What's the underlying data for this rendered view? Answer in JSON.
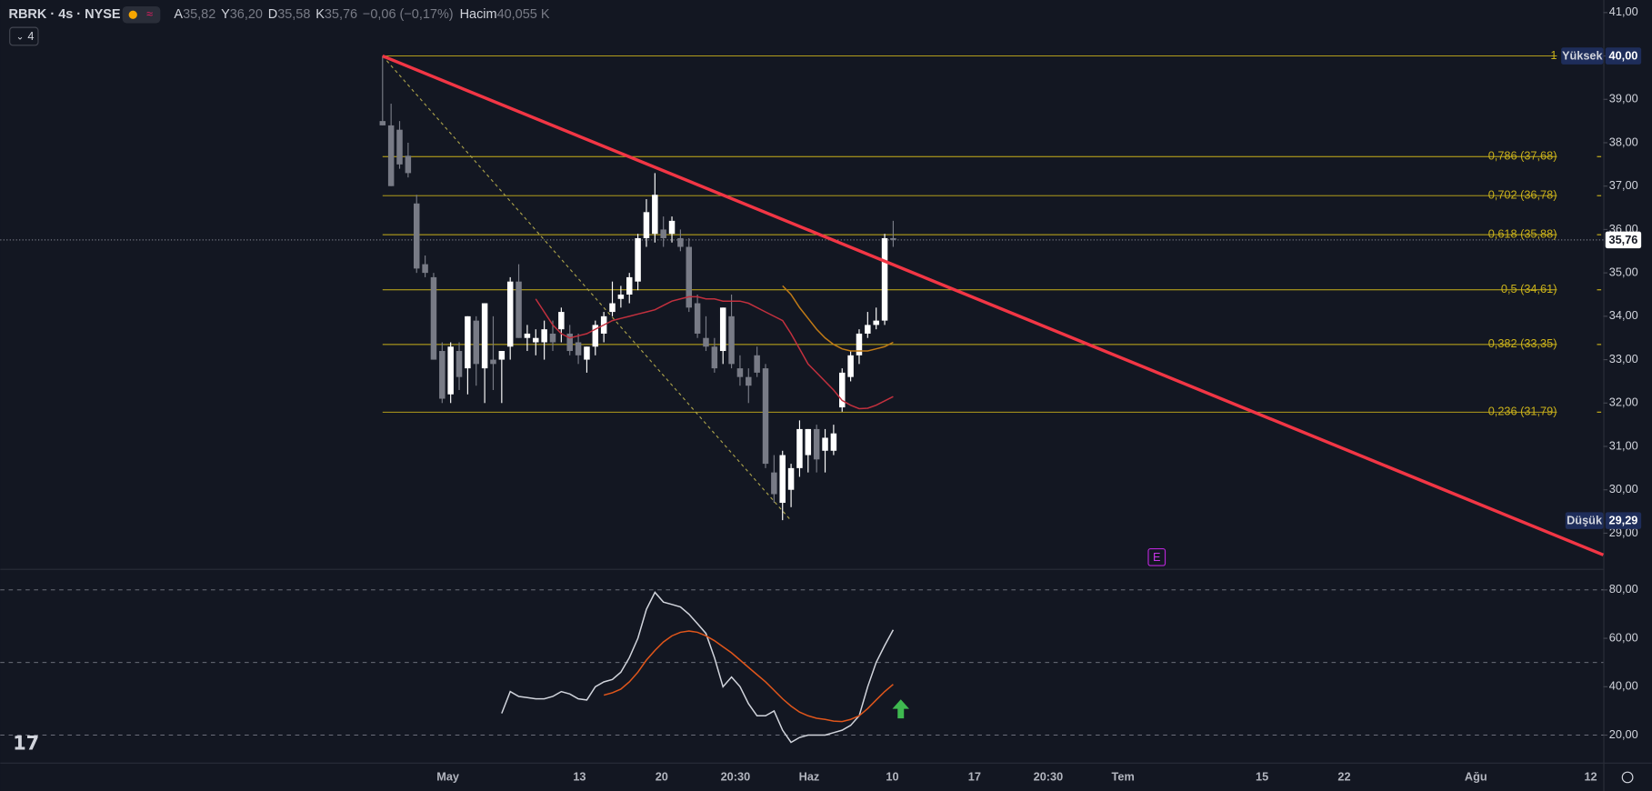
{
  "header": {
    "symbol": "RBRK · 4s · NYSE",
    "o_label": "A",
    "o": "35,82",
    "h_label": "Y",
    "h": "36,20",
    "l_label": "D",
    "l": "35,58",
    "c_label": "K",
    "c": "35,76",
    "change": "−0,06 (−0,17%)",
    "vol_label": "Hacim",
    "vol": "40,055 K",
    "collapse": "4",
    "earnings": "E"
  },
  "chart_data": [
    {
      "type": "candlestick",
      "ylim": [
        28.18,
        41.29
      ],
      "yticks": [
        {
          "value": 29,
          "label": "29,00"
        },
        {
          "value": 30,
          "label": "30,00"
        },
        {
          "value": 31,
          "label": "31,00"
        },
        {
          "value": 32,
          "label": "32,00"
        },
        {
          "value": 33,
          "label": "33,00"
        },
        {
          "value": 34,
          "label": "34,00"
        },
        {
          "value": 35,
          "label": "35,00"
        },
        {
          "value": 36,
          "label": "36,00"
        },
        {
          "value": 37,
          "label": "37,00"
        },
        {
          "value": 38,
          "label": "38,00"
        },
        {
          "value": 39,
          "label": "39,00"
        },
        {
          "value": 40,
          "label": "40,00"
        },
        {
          "value": 41,
          "label": "41,00"
        }
      ],
      "x_labels": [
        "May",
        "13",
        "20",
        "20:30",
        "Haz",
        "10",
        "17",
        "20:30",
        "Tem",
        "15",
        "22",
        "Ağu",
        "12"
      ],
      "up_color": "#ffffff",
      "down_color": "#787b86",
      "open": [
        38.5,
        38.4,
        38.3,
        37.7,
        36.6,
        35.2,
        34.9,
        33.2,
        32.2,
        33.2,
        32.8,
        33.9,
        32.8,
        33.0,
        33.0,
        33.3,
        34.8,
        33.5,
        33.4,
        33.4,
        33.6,
        33.7,
        33.6,
        33.4,
        33.0,
        33.3,
        33.6,
        34.1,
        34.4,
        34.5,
        34.8,
        35.8,
        35.9,
        36.0,
        35.9,
        35.8,
        35.6,
        34.3,
        33.5,
        33.3,
        33.2,
        34.0,
        32.8,
        32.6,
        33.1,
        32.8,
        30.4,
        29.7,
        30.0,
        30.5,
        30.8,
        31.4,
        30.9,
        30.9,
        31.9,
        32.6,
        33.1,
        33.6,
        33.8,
        33.9,
        35.8
      ],
      "high": [
        40.0,
        38.9,
        38.5,
        38.0,
        36.8,
        35.4,
        35.0,
        33.4,
        33.4,
        33.4,
        34.0,
        34.0,
        34.3,
        34.0,
        33.2,
        34.9,
        35.2,
        33.8,
        33.7,
        33.9,
        33.9,
        34.2,
        33.8,
        33.6,
        33.3,
        33.9,
        34.1,
        34.8,
        34.7,
        35.0,
        35.9,
        36.7,
        37.3,
        36.3,
        36.3,
        36.0,
        35.8,
        34.5,
        34.0,
        33.5,
        34.2,
        34.5,
        33.1,
        32.8,
        33.3,
        32.9,
        30.8,
        30.9,
        30.6,
        31.6,
        31.4,
        31.5,
        31.4,
        31.5,
        32.8,
        33.2,
        33.7,
        34.1,
        34.2,
        35.9,
        36.2
      ],
      "low": [
        38.4,
        37.0,
        37.4,
        37.2,
        35.0,
        34.9,
        33.0,
        32.0,
        32.0,
        32.3,
        32.2,
        32.4,
        32.0,
        32.3,
        32.0,
        33.0,
        33.5,
        33.2,
        33.1,
        33.0,
        33.2,
        33.4,
        33.1,
        32.9,
        32.7,
        33.1,
        33.4,
        34.0,
        34.2,
        34.3,
        34.6,
        35.6,
        35.7,
        35.6,
        35.7,
        35.5,
        34.1,
        33.5,
        33.2,
        32.7,
        32.9,
        32.8,
        32.4,
        32.0,
        32.6,
        30.5,
        29.7,
        29.3,
        29.6,
        30.3,
        30.4,
        30.4,
        30.4,
        30.8,
        31.8,
        32.5,
        32.9,
        33.5,
        33.7,
        33.8,
        35.6
      ],
      "close": [
        38.4,
        37.0,
        37.5,
        37.3,
        35.1,
        35.0,
        33.0,
        32.1,
        33.3,
        32.6,
        34.0,
        32.9,
        34.3,
        32.9,
        33.2,
        34.8,
        33.5,
        33.6,
        33.5,
        33.7,
        33.4,
        34.1,
        33.2,
        33.1,
        33.3,
        33.8,
        34.0,
        34.3,
        34.5,
        34.9,
        35.8,
        36.4,
        36.8,
        35.8,
        36.2,
        35.6,
        34.2,
        33.6,
        33.3,
        32.8,
        34.2,
        32.9,
        32.6,
        32.4,
        32.7,
        30.6,
        29.9,
        30.8,
        30.5,
        31.4,
        31.4,
        30.7,
        31.2,
        31.3,
        32.7,
        33.1,
        33.6,
        33.8,
        33.9,
        35.8,
        35.76
      ],
      "series": [
        {
          "color": "#c2303e",
          "values": [
            null,
            null,
            null,
            null,
            null,
            null,
            null,
            null,
            null,
            null,
            null,
            null,
            null,
            null,
            null,
            null,
            null,
            null,
            34.4,
            34.1,
            33.8,
            33.6,
            33.5,
            33.55,
            33.6,
            33.7,
            33.8,
            33.9,
            33.95,
            34.0,
            34.05,
            34.1,
            34.15,
            34.25,
            34.35,
            34.4,
            34.45,
            34.45,
            34.4,
            34.4,
            34.35,
            34.35,
            34.35,
            34.3,
            34.2,
            34.1,
            34.0,
            33.9,
            33.6,
            33.25,
            32.9,
            32.7,
            32.5,
            32.3,
            32.06,
            31.95,
            31.87,
            31.88,
            31.95,
            32.05,
            32.15
          ]
        },
        {
          "color": "#c07a16",
          "values": [
            null,
            null,
            null,
            null,
            null,
            null,
            null,
            null,
            null,
            null,
            null,
            null,
            null,
            null,
            null,
            null,
            null,
            null,
            null,
            null,
            null,
            null,
            null,
            null,
            null,
            null,
            null,
            null,
            null,
            null,
            null,
            null,
            null,
            null,
            null,
            null,
            null,
            null,
            null,
            null,
            null,
            null,
            null,
            null,
            null,
            null,
            null,
            34.7,
            34.5,
            34.2,
            33.95,
            33.7,
            33.5,
            33.35,
            33.25,
            33.2,
            33.2,
            33.2,
            33.25,
            33.3,
            33.4
          ]
        }
      ],
      "fib_color": "#c9b11b",
      "fib_levels": [
        {
          "value": 40,
          "label": "1"
        },
        {
          "value": 37.68,
          "label": "0,786 (37,68)"
        },
        {
          "value": 36.78,
          "label": "0,702 (36,78)"
        },
        {
          "value": 35.88,
          "label": "0,618 (35,88)"
        },
        {
          "value": 34.61,
          "label": "0,5 (34,61)"
        },
        {
          "value": 33.35,
          "label": "0,382 (33,35)"
        },
        {
          "value": 31.79,
          "label": "0,236 (31,79)"
        }
      ],
      "trendline": {
        "color": "#f23645",
        "values": [
          40,
          28.5
        ]
      },
      "high_badge": {
        "label": "Yüksek",
        "value": 40,
        "value_label": "40,00"
      },
      "low_badge": {
        "label": "Düşük",
        "value": 29.29,
        "value_label": "29,29"
      },
      "last_price": {
        "value": 35.76,
        "label": "35,76"
      }
    },
    {
      "type": "line",
      "ylim": [
        10.4,
        88.3
      ],
      "yticks": [
        {
          "value": 20,
          "label": "20,00"
        },
        {
          "value": 40,
          "label": "40,00"
        },
        {
          "value": 60,
          "label": "60,00"
        },
        {
          "value": 80,
          "label": "80,00"
        }
      ],
      "bands": [
        80,
        50,
        20
      ],
      "series": [
        {
          "color": "#d1d4dc",
          "values": [
            null,
            null,
            null,
            null,
            null,
            null,
            null,
            null,
            null,
            null,
            null,
            null,
            null,
            null,
            29,
            38,
            36,
            35.5,
            35,
            35,
            36,
            38,
            37,
            35,
            34.5,
            40,
            42,
            43,
            46,
            52,
            60,
            72,
            79,
            75,
            74,
            73,
            70,
            66,
            62,
            52,
            40,
            44,
            40,
            33,
            28,
            28,
            30,
            22,
            17,
            19,
            20,
            20,
            20,
            21,
            22,
            24,
            28,
            40,
            50,
            57,
            63.5
          ]
        },
        {
          "color": "#e0561b",
          "values": [
            null,
            null,
            null,
            null,
            null,
            null,
            null,
            null,
            null,
            null,
            null,
            null,
            null,
            null,
            null,
            null,
            null,
            null,
            null,
            null,
            null,
            null,
            null,
            null,
            null,
            null,
            36.5,
            37.5,
            39,
            42,
            46,
            51,
            55,
            58.5,
            61,
            62.5,
            63,
            62.5,
            61,
            59,
            56.5,
            54,
            51,
            48,
            45,
            42,
            38.5,
            35,
            32,
            29.5,
            28,
            27,
            26.5,
            25.8,
            25.6,
            26.5,
            28,
            31,
            34.5,
            38,
            41
          ]
        }
      ]
    }
  ]
}
